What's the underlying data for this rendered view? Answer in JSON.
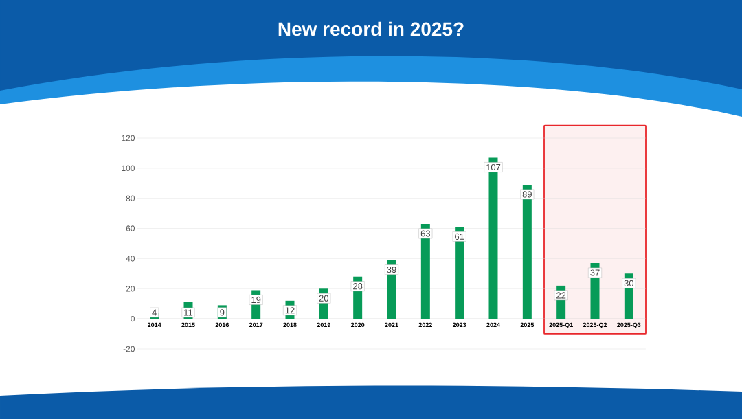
{
  "chart_data": {
    "type": "bar",
    "title": "New record in 2025?",
    "categories": [
      "2014",
      "2015",
      "2016",
      "2017",
      "2018",
      "2019",
      "2020",
      "2021",
      "2022",
      "2023",
      "2024",
      "2025",
      "2025-Q1",
      "2025-Q2",
      "2025-Q3"
    ],
    "values": [
      4,
      11,
      9,
      19,
      12,
      20,
      28,
      39,
      63,
      61,
      107,
      89,
      22,
      37,
      30
    ],
    "color": "#079b58",
    "ylim": [
      -20,
      120
    ],
    "yticks": [
      -20,
      0,
      20,
      40,
      60,
      80,
      100,
      120
    ],
    "grid": "y",
    "data_labels": true,
    "bands": [
      {
        "axis": "x",
        "from": "2025-Q1",
        "to": "2025-Q3",
        "color": "#e8262b"
      }
    ]
  }
}
